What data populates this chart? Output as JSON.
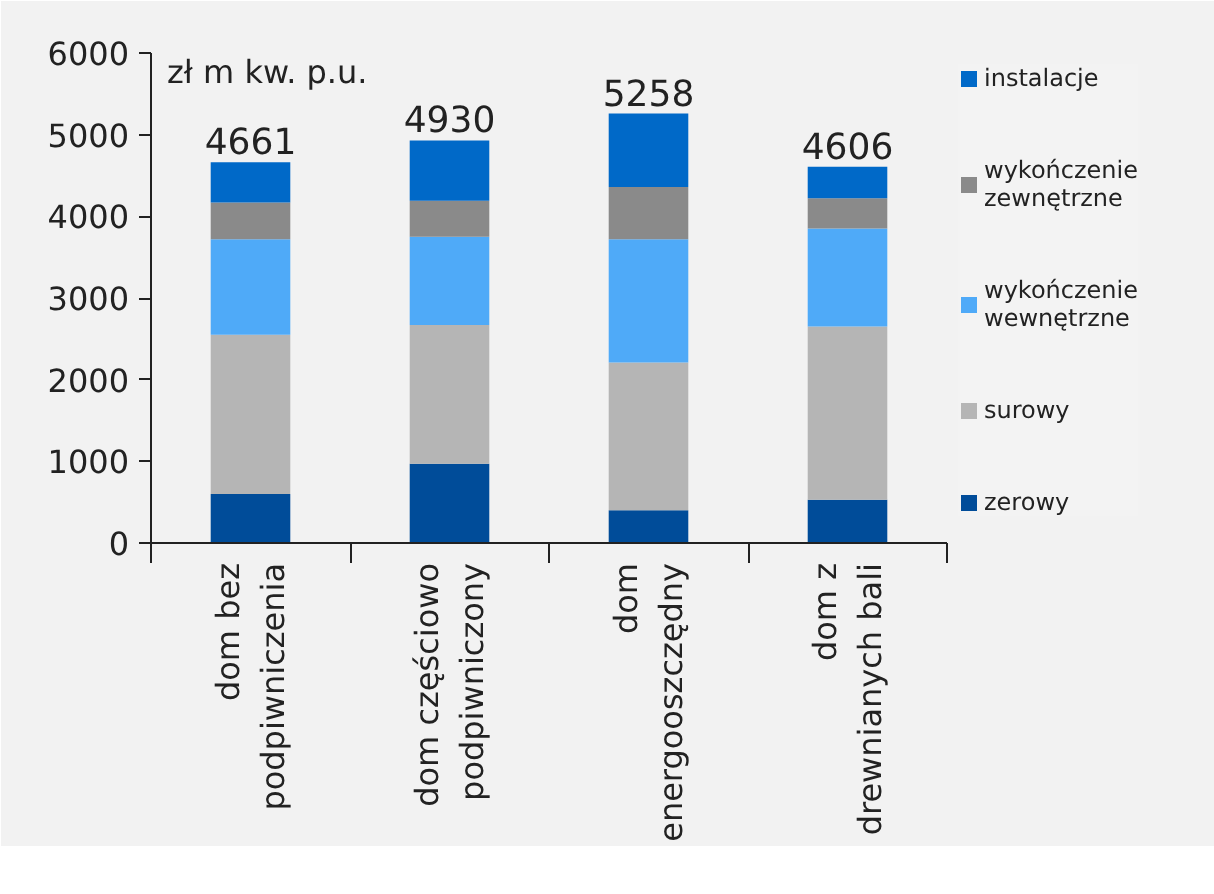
{
  "chart_data": {
    "type": "bar",
    "stacked": true,
    "ylabel": "zł m kw. p.u.",
    "categories": [
      "dom bez\npodpiwniczenia",
      "dom częściowo\npodpiwniczony",
      "dom\nenergooszczędny",
      "dom z\ndrewnianych bali"
    ],
    "series": [
      {
        "name": "zerowy",
        "color": "#004c99",
        "values": [
          600,
          970,
          400,
          530
        ]
      },
      {
        "name": "surowy",
        "color": "#b5b5b5",
        "values": [
          1950,
          1700,
          1810,
          2120
        ]
      },
      {
        "name": "wykończenie wewnętrzne",
        "color": "#4faaf8",
        "values": [
          1170,
          1080,
          1510,
          1200
        ]
      },
      {
        "name": "wykończenie zewnętrzne",
        "color": "#8a8a8a",
        "values": [
          450,
          440,
          640,
          370
        ]
      },
      {
        "name": "instalacje",
        "color": "#0069c8",
        "values": [
          491,
          740,
          898,
          386
        ]
      }
    ],
    "totals": [
      "4661",
      "4930",
      "5258",
      "4606"
    ],
    "ylim": [
      0,
      6000
    ],
    "yticks": [
      0,
      1000,
      2000,
      3000,
      4000,
      5000,
      6000
    ],
    "grid": false,
    "legend": "right"
  }
}
